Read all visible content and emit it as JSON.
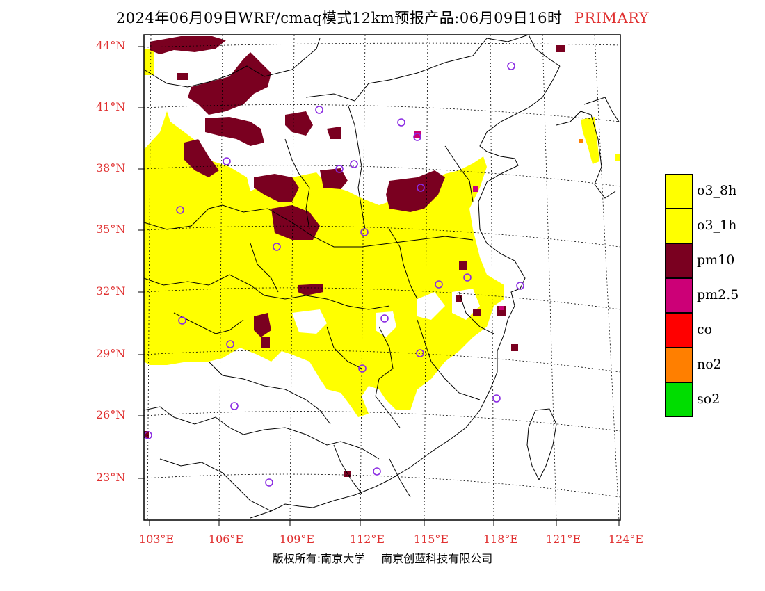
{
  "title": {
    "main": "2024年06月09日WRF/cmaq模式12km预报产品:06月09日16时",
    "mode": "PRIMARY"
  },
  "axes": {
    "lat_labels": [
      "44°N",
      "41°N",
      "38°N",
      "35°N",
      "32°N",
      "29°N",
      "26°N",
      "23°N"
    ],
    "lon_labels": [
      "103°E",
      "106°E",
      "109°E",
      "112°E",
      "115°E",
      "118°E",
      "121°E",
      "124°E"
    ]
  },
  "legend": [
    {
      "label": "o3_8h",
      "color": "#ffff00"
    },
    {
      "label": "o3_1h",
      "color": "#ffff00"
    },
    {
      "label": "pm10",
      "color": "#7a0020"
    },
    {
      "label": "pm2.5",
      "color": "#cc0077"
    },
    {
      "label": "co",
      "color": "#ff0000"
    },
    {
      "label": "no2",
      "color": "#ff7f00"
    },
    {
      "label": "so2",
      "color": "#00dd00"
    }
  ],
  "footer": {
    "left": "版权所有:南京大学",
    "right": "南京创蓝科技有限公司"
  },
  "colors": {
    "o3": "#ffff00",
    "pm10": "#7a0020",
    "pm25": "#cc0077",
    "station_marker": "#8a2be2",
    "axis_label": "#e03030"
  }
}
